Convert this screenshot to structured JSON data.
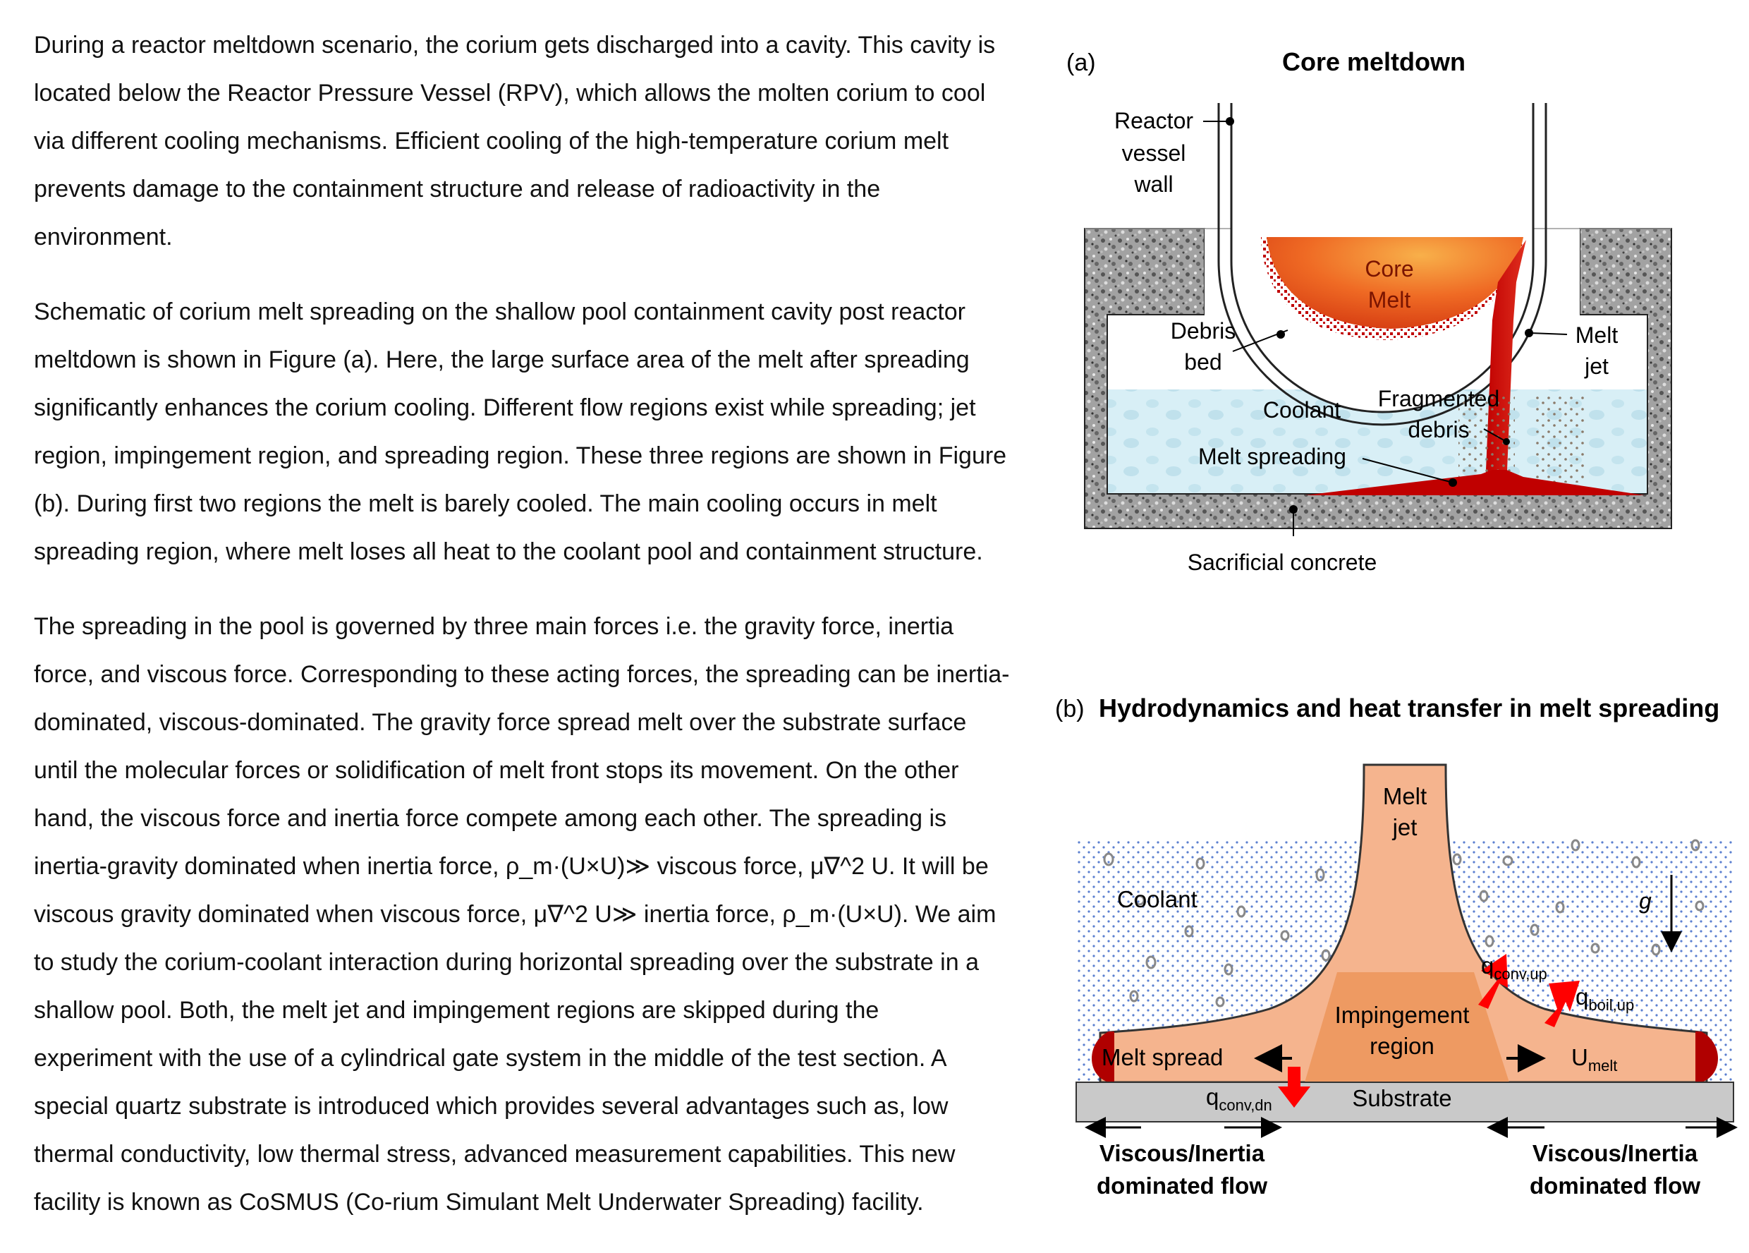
{
  "paragraphs": [
    [
      "During a reactor meltdown scenario, the corium gets discharged into a cavity. This cavity is",
      "located below the Reactor Pressure Vessel (RPV), which allows the molten corium to cool",
      "via different cooling mechanisms. Efficient cooling of the high-temperature corium melt",
      "prevents damage to the containment structure and release of radioactivity in the",
      "environment."
    ],
    [
      "Schematic of corium melt spreading on the shallow pool containment cavity post reactor",
      "meltdown is shown in Figure (a). Here, the large surface area of the melt after spreading",
      "significantly enhances the corium cooling. Different flow regions exist while spreading; jet",
      "region, impingement region, and spreading region. These three regions are shown in Figure",
      "(b). During first two regions the melt is barely cooled. The main cooling occurs in melt",
      "spreading region, where melt loses all heat to the coolant pool and containment structure."
    ],
    [
      "The spreading in the pool is governed by three main forces i.e. the gravity force, inertia",
      "force, and viscous force. Corresponding to these acting forces, the spreading can be inertia-",
      "dominated, viscous-dominated.  The gravity force spread melt over the substrate surface",
      "until the molecular forces or solidification of melt front stops its movement. On the other",
      "hand, the viscous force and inertia force compete among each other. The spreading is",
      "inertia-gravity dominated when inertia force, ρ_m·(U×U)≫ viscous force, μ∇^2 U. It will be",
      "viscous gravity dominated when viscous force, μ∇^2 U≫  inertia force, ρ_m·(U×U).  We aim",
      "to study the corium-coolant interaction during horizontal spreading over the substrate in a",
      "shallow pool. Both, the melt jet and impingement regions are skipped during the",
      "experiment with the use of a cylindrical gate system in the middle of the test section. A",
      "special quartz substrate is introduced which provides several advantages such as, low",
      "thermal conductivity, low thermal stress, advanced measurement capabilities. This new",
      "facility is known as CoSMUS (Co-rium Simulant Melt Underwater Spreading) facility."
    ]
  ],
  "figure_a": {
    "panel": "(a)",
    "title": "Core meltdown",
    "labels": {
      "reactor1": "Reactor",
      "reactor2": "vessel",
      "reactor3": "wall",
      "core1": "Core",
      "core2": "Melt",
      "debris1": "Debris",
      "debris2": "bed",
      "jet1": "Melt",
      "jet2": "jet",
      "coolant": "Coolant",
      "frag1": "Fragmented",
      "frag2": "debris",
      "spreading": "Melt spreading",
      "concrete": "Sacrificial concrete"
    }
  },
  "figure_b": {
    "panel": "(b)",
    "title": "Hydrodynamics and heat transfer in melt spreading",
    "labels": {
      "jet1": "Melt",
      "jet2": "jet",
      "coolant": "Coolant",
      "g": "g",
      "q": "q",
      "conv_up": "conv,up",
      "boil_up": "boil,up",
      "conv_dn": "conv,dn",
      "impinge1": "Impingement",
      "impinge2": "region",
      "spread": "Melt spread",
      "u": "U",
      "u_sub": "melt",
      "substrate": "Substrate",
      "left1": "Viscous/Inertia",
      "left2": "dominated flow",
      "right1": "Viscous/Inertia",
      "right2": "dominated flow"
    }
  },
  "colors": {
    "melt_dark": "#c00000",
    "melt_light": "#f5b48e",
    "impinge": "#ee9a62",
    "coolant": "#d6eef6",
    "concrete": "#9a9a9a",
    "substrate": "#c9c9c9",
    "arrow_red": "#ff0000"
  }
}
